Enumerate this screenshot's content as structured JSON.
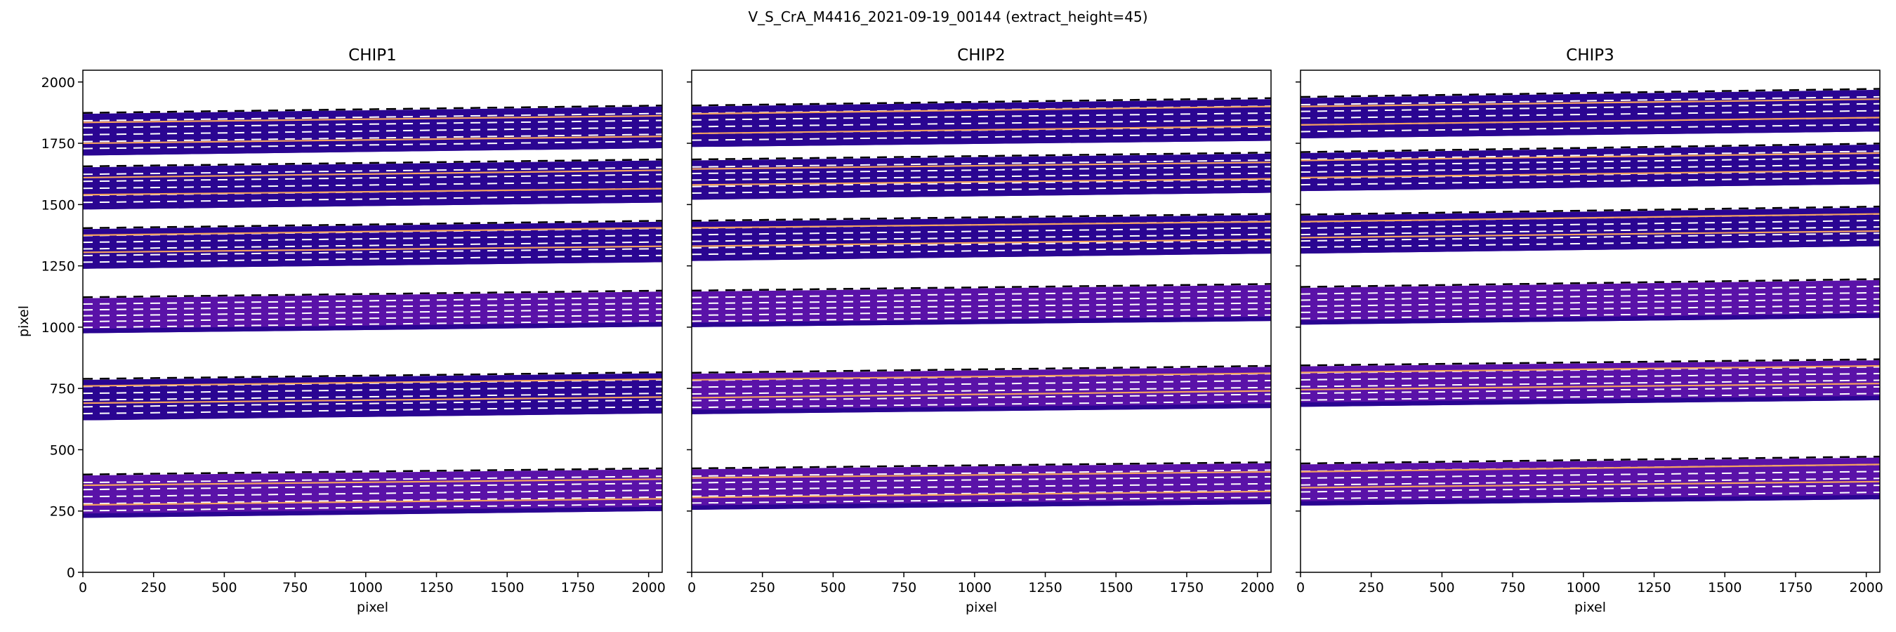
{
  "figure": {
    "suptitle": "V_S_CrA_M4416_2021-09-19_00144  (extract_height=45)"
  },
  "colors": {
    "order_fill": "#2a0592",
    "order_fill_light": "#5a12a8",
    "order_edge": "#000000",
    "trace_line": "#f4a15f",
    "dashed_line": "#ffffff",
    "axis": "#000000"
  },
  "chart_data": [
    {
      "type": "line",
      "title": "CHIP1",
      "xlabel": "pixel",
      "ylabel": "pixel",
      "xlim": [
        0,
        2048
      ],
      "ylim": [
        0,
        2048
      ],
      "xticks": [
        0,
        250,
        500,
        750,
        1000,
        1250,
        1500,
        1750,
        2000
      ],
      "yticks": [
        0,
        250,
        500,
        750,
        1000,
        1250,
        1500,
        1750,
        2000
      ],
      "orders": [
        {
          "bottom": [
            222,
            250
          ],
          "top": [
            395,
            420
          ],
          "traces": [
            [
              275,
              300
            ],
            [
              355,
              380
            ]
          ]
        },
        {
          "bottom": [
            620,
            648
          ],
          "top": [
            785,
            812
          ],
          "traces": [
            [
              690,
              715
            ],
            [
              760,
              788
            ]
          ]
        },
        {
          "bottom": [
            975,
            1002
          ],
          "top": [
            1118,
            1145
          ],
          "traces": []
        },
        {
          "bottom": [
            1238,
            1265
          ],
          "top": [
            1400,
            1430
          ],
          "traces": [
            [
              1305,
              1330
            ],
            [
              1375,
              1405
            ]
          ]
        },
        {
          "bottom": [
            1480,
            1508
          ],
          "top": [
            1652,
            1680
          ],
          "traces": [
            [
              1540,
              1565
            ],
            [
              1610,
              1640
            ]
          ]
        },
        {
          "bottom": [
            1700,
            1730
          ],
          "top": [
            1870,
            1900
          ],
          "traces": [
            [
              1750,
              1778
            ],
            [
              1835,
              1862
            ]
          ]
        }
      ]
    },
    {
      "type": "line",
      "title": "CHIP2",
      "xlabel": "pixel",
      "ylabel": "",
      "xlim": [
        0,
        2048
      ],
      "ylim": [
        0,
        2048
      ],
      "xticks": [
        0,
        250,
        500,
        750,
        1000,
        1250,
        1500,
        1750,
        2000
      ],
      "yticks": [
        0,
        250,
        500,
        750,
        1000,
        1250,
        1500,
        1750,
        2000
      ],
      "orders": [
        {
          "bottom": [
            255,
            278
          ],
          "top": [
            420,
            445
          ],
          "traces": [
            [
              305,
              330
            ],
            [
              385,
              410
            ]
          ]
        },
        {
          "bottom": [
            645,
            670
          ],
          "top": [
            810,
            838
          ],
          "traces": [
            [
              712,
              740
            ],
            [
              785,
              812
            ]
          ]
        },
        {
          "bottom": [
            1000,
            1025
          ],
          "top": [
            1145,
            1172
          ],
          "traces": []
        },
        {
          "bottom": [
            1270,
            1300
          ],
          "top": [
            1430,
            1458
          ],
          "traces": [
            [
              1330,
              1358
            ],
            [
              1405,
              1430
            ]
          ]
        },
        {
          "bottom": [
            1520,
            1548
          ],
          "top": [
            1680,
            1708
          ],
          "traces": [
            [
              1580,
              1605
            ],
            [
              1645,
              1672
            ]
          ]
        },
        {
          "bottom": [
            1735,
            1760
          ],
          "top": [
            1900,
            1930
          ],
          "traces": [
            [
              1790,
              1820
            ],
            [
              1870,
              1900
            ]
          ]
        }
      ]
    },
    {
      "type": "line",
      "title": "CHIP3",
      "xlabel": "pixel",
      "ylabel": "",
      "xlim": [
        0,
        2048
      ],
      "ylim": [
        0,
        2048
      ],
      "xticks": [
        0,
        250,
        500,
        750,
        1000,
        1250,
        1500,
        1750,
        2000
      ],
      "yticks": [
        0,
        250,
        500,
        750,
        1000,
        1250,
        1500,
        1750,
        2000
      ],
      "orders": [
        {
          "bottom": [
            272,
            298
          ],
          "top": [
            440,
            468
          ],
          "traces": [
            [
              345,
              370
            ],
            [
              410,
              440
            ]
          ]
        },
        {
          "bottom": [
            675,
            702
          ],
          "top": [
            840,
            865
          ],
          "traces": [
            [
              745,
              770
            ],
            [
              815,
              842
            ]
          ]
        },
        {
          "bottom": [
            1010,
            1038
          ],
          "top": [
            1160,
            1192
          ],
          "traces": []
        },
        {
          "bottom": [
            1300,
            1330
          ],
          "top": [
            1455,
            1488
          ],
          "traces": [
            [
              1365,
              1392
            ],
            [
              1430,
              1462
            ]
          ]
        },
        {
          "bottom": [
            1555,
            1583
          ],
          "top": [
            1710,
            1745
          ],
          "traces": [
            [
              1610,
              1640
            ],
            [
              1680,
              1710
            ]
          ]
        },
        {
          "bottom": [
            1770,
            1798
          ],
          "top": [
            1935,
            1968
          ],
          "traces": [
            [
              1825,
              1855
            ],
            [
              1900,
              1930
            ]
          ]
        }
      ]
    }
  ]
}
